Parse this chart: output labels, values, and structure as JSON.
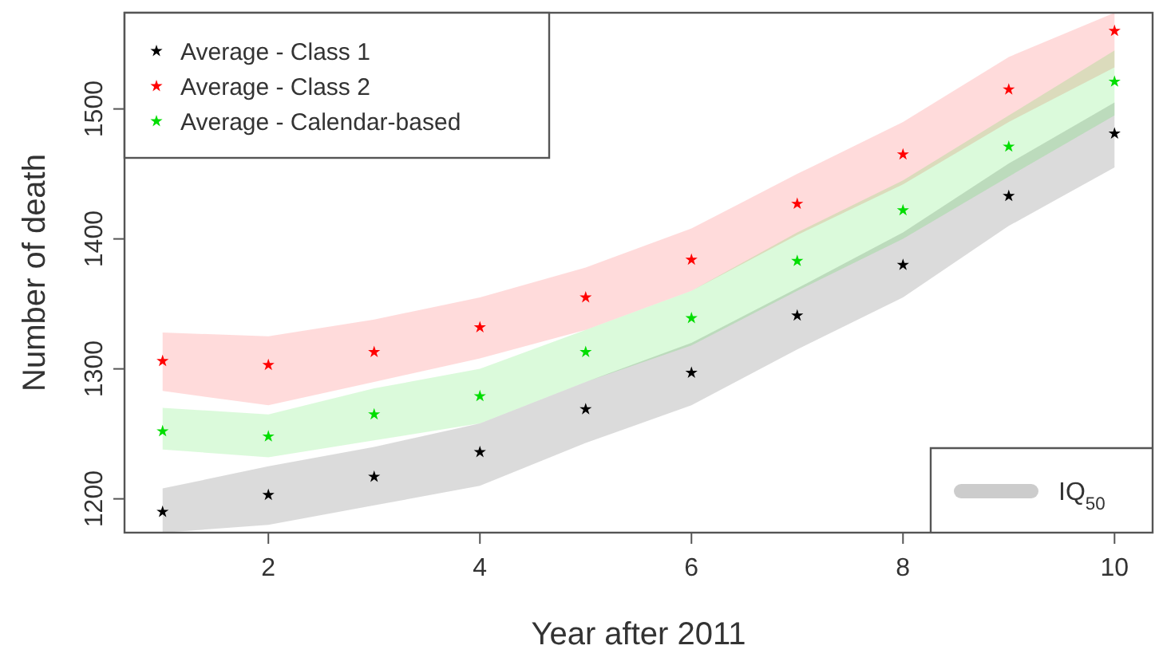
{
  "chart_data": {
    "type": "scatter",
    "xlabel": "Year after 2011",
    "ylabel": "Number of death",
    "x": [
      1,
      2,
      3,
      4,
      5,
      6,
      7,
      8,
      9,
      10
    ],
    "xlim": [
      0.64,
      10.36
    ],
    "xticks": [
      2,
      4,
      6,
      8,
      10
    ],
    "ylim": [
      1174,
      1574
    ],
    "yticks": [
      1200,
      1300,
      1400,
      1500
    ],
    "grid": false,
    "legend": "top left",
    "marker": "star",
    "annotations": [
      "IQ$_{50}$"
    ],
    "series": [
      {
        "name": "Average - Class 1",
        "color": "#000000",
        "values": [
          1190,
          1203,
          1217,
          1236,
          1269,
          1297,
          1341,
          1380,
          1433,
          1481
        ],
        "lower": [
          1174,
          1180,
          1195,
          1210,
          1243,
          1272,
          1315,
          1355,
          1410,
          1455
        ],
        "upper": [
          1208,
          1225,
          1240,
          1258,
          1290,
          1320,
          1362,
          1405,
          1458,
          1505
        ]
      },
      {
        "name": "Average - Class 2",
        "color": "#ff0000",
        "values": [
          1306,
          1303,
          1313,
          1332,
          1355,
          1384,
          1427,
          1465,
          1515,
          1560
        ],
        "lower": [
          1283,
          1272,
          1290,
          1308,
          1330,
          1360,
          1403,
          1442,
          1490,
          1532
        ],
        "upper": [
          1328,
          1325,
          1338,
          1355,
          1378,
          1408,
          1450,
          1490,
          1540,
          1574
        ]
      },
      {
        "name": "Average - Calendar-based",
        "color": "#00dd00",
        "values": [
          1252,
          1248,
          1265,
          1279,
          1313,
          1339,
          1383,
          1422,
          1471,
          1521
        ],
        "lower": [
          1238,
          1232,
          1245,
          1258,
          1290,
          1318,
          1360,
          1400,
          1448,
          1495
        ],
        "upper": [
          1270,
          1265,
          1285,
          1300,
          1330,
          1360,
          1405,
          1445,
          1495,
          1545
        ]
      }
    ]
  }
}
